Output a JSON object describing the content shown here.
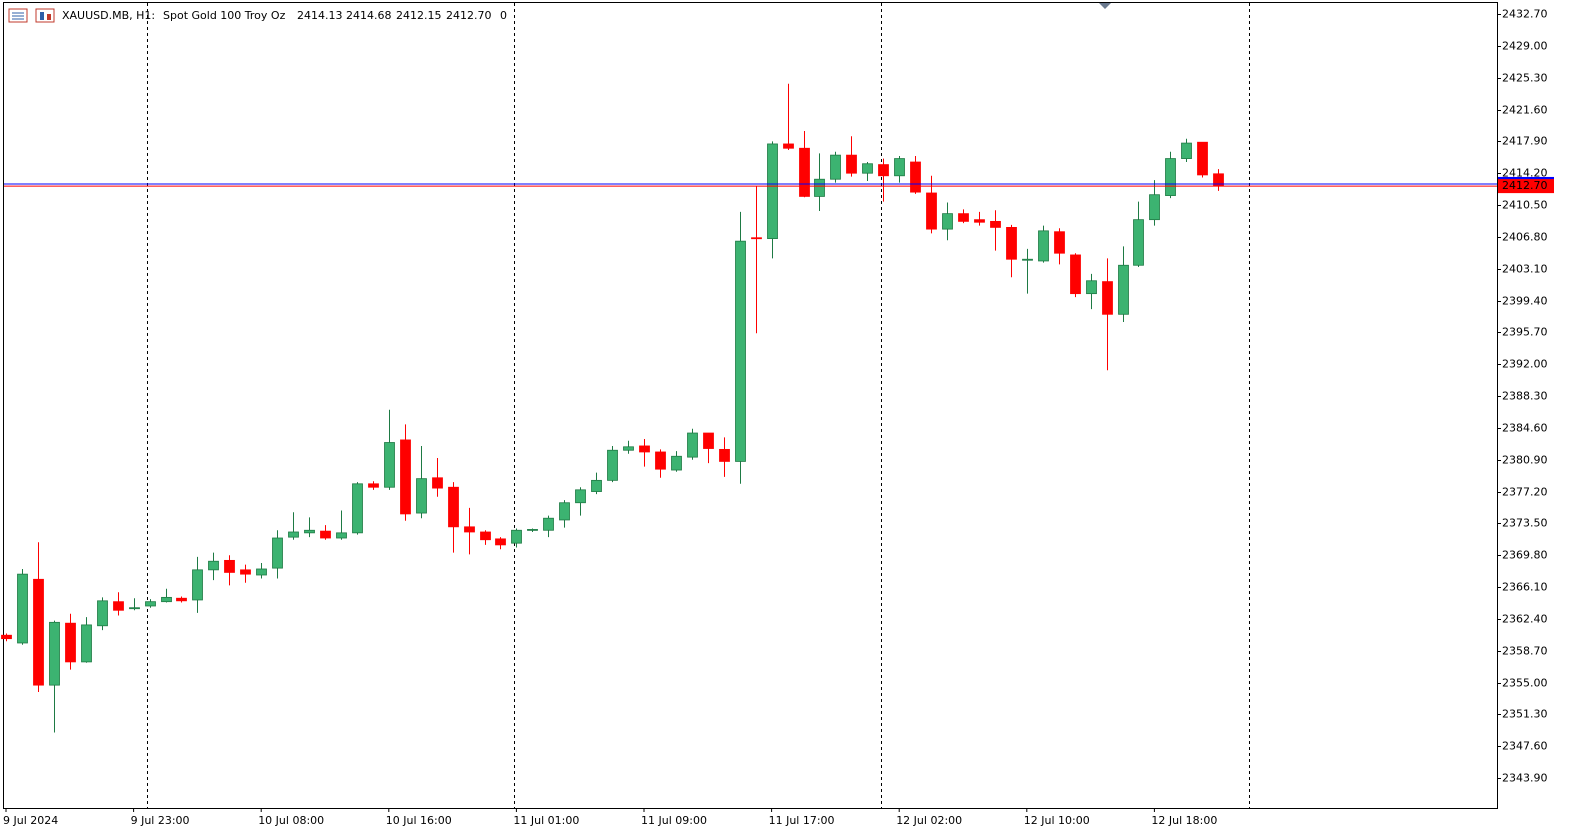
{
  "header": {
    "symbol": "XAUUSD.MB, H1:",
    "description": "Spot Gold 100 Troy Oz",
    "ohlc": [
      "2414.13",
      "2414.68",
      "2412.15",
      "2412.70"
    ],
    "volume": "0"
  },
  "chart_data": {
    "type": "candlestick",
    "categories": [
      "9 Jul 2024",
      null,
      null,
      null,
      null,
      null,
      null,
      null,
      "9 Jul 23:00",
      null,
      null,
      null,
      null,
      null,
      null,
      null,
      "10 Jul 08:00",
      null,
      null,
      null,
      null,
      null,
      null,
      null,
      "10 Jul 16:00",
      null,
      null,
      null,
      null,
      null,
      null,
      null,
      "11 Jul 01:00",
      null,
      null,
      null,
      null,
      null,
      null,
      null,
      "11 Jul 09:00",
      null,
      null,
      null,
      null,
      null,
      null,
      null,
      "11 Jul 17:00",
      null,
      null,
      null,
      null,
      null,
      null,
      null,
      "12 Jul 02:00",
      null,
      null,
      null,
      null,
      null,
      null,
      null,
      "12 Jul 10:00",
      null,
      null,
      null,
      null,
      null,
      null,
      null,
      "12 Jul 18:00",
      null,
      null,
      null,
      null
    ],
    "open": [
      2360.5,
      2359.6,
      2367.0,
      2354.7,
      2361.9,
      2357.4,
      2361.6,
      2364.4,
      2363.6,
      2363.9,
      2364.4,
      2364.8,
      2364.6,
      2368.1,
      2369.2,
      2368.1,
      2367.5,
      2368.3,
      2371.9,
      2372.4,
      2372.6,
      2371.8,
      2372.4,
      2378.1,
      2377.7,
      2383.2,
      2374.7,
      2378.8,
      2377.7,
      2373.1,
      2372.5,
      2371.7,
      2371.2,
      2372.7,
      2372.7,
      2373.9,
      2375.9,
      2377.2,
      2378.5,
      2382.0,
      2382.5,
      2381.8,
      2379.7,
      2381.2,
      2384.0,
      2382.1,
      2380.7,
      2406.7,
      2406.6,
      2417.6,
      2417.1,
      2411.5,
      2413.5,
      2416.3,
      2414.2,
      2415.2,
      2413.9,
      2415.5,
      2411.9,
      2407.7,
      2409.5,
      2408.8,
      2408.6,
      2407.9,
      2404.1,
      2404.0,
      2407.4,
      2404.7,
      2400.2,
      2401.6,
      2397.8,
      2403.5,
      2408.8,
      2411.6,
      2415.9,
      2417.8,
      2414.13
    ],
    "high": [
      2360.7,
      2368.2,
      2371.3,
      2362.2,
      2363.0,
      2362.6,
      2364.9,
      2365.5,
      2364.8,
      2364.7,
      2365.9,
      2365.0,
      2369.6,
      2370.1,
      2369.8,
      2368.7,
      2368.9,
      2372.7,
      2374.8,
      2374.2,
      2373.3,
      2375.0,
      2378.3,
      2378.4,
      2386.7,
      2385.0,
      2382.5,
      2381.1,
      2378.3,
      2375.3,
      2372.7,
      2371.9,
      2372.9,
      2372.9,
      2374.4,
      2376.2,
      2377.7,
      2379.4,
      2382.5,
      2383.1,
      2383.3,
      2382.1,
      2381.9,
      2384.5,
      2384.0,
      2383.5,
      2409.7,
      2412.7,
      2417.9,
      2424.6,
      2419.1,
      2416.5,
      2416.7,
      2418.5,
      2415.5,
      2415.9,
      2416.2,
      2416.2,
      2413.9,
      2410.8,
      2410.0,
      2409.7,
      2409.9,
      2408.2,
      2405.4,
      2408.1,
      2407.8,
      2404.9,
      2402.5,
      2404.3,
      2405.7,
      2410.9,
      2413.4,
      2416.7,
      2418.2,
      2417.8,
      2414.68
    ],
    "low": [
      2359.8,
      2359.4,
      2353.9,
      2349.2,
      2356.5,
      2357.3,
      2361.1,
      2362.8,
      2363.4,
      2363.7,
      2364.3,
      2364.3,
      2363.1,
      2366.9,
      2366.3,
      2366.6,
      2367.1,
      2367.1,
      2371.6,
      2371.9,
      2371.6,
      2371.6,
      2372.2,
      2377.4,
      2377.4,
      2373.8,
      2374.1,
      2376.6,
      2370.1,
      2369.9,
      2371.0,
      2370.5,
      2370.7,
      2372.5,
      2371.9,
      2373.0,
      2374.4,
      2376.9,
      2378.3,
      2381.6,
      2380.1,
      2378.8,
      2379.5,
      2380.9,
      2380.5,
      2378.9,
      2378.1,
      2395.6,
      2404.3,
      2416.9,
      2411.4,
      2409.8,
      2413.1,
      2413.8,
      2413.3,
      2410.9,
      2413.1,
      2411.8,
      2407.2,
      2406.4,
      2408.4,
      2408.1,
      2405.2,
      2402.1,
      2400.2,
      2403.8,
      2403.6,
      2399.8,
      2398.4,
      2391.3,
      2396.9,
      2403.3,
      2408.1,
      2411.3,
      2415.5,
      2413.7,
      2412.15
    ],
    "close": [
      2360.1,
      2367.6,
      2354.7,
      2362.0,
      2357.4,
      2361.7,
      2364.5,
      2363.4,
      2363.7,
      2364.4,
      2364.9,
      2364.5,
      2368.1,
      2369.1,
      2367.8,
      2367.6,
      2368.2,
      2371.8,
      2372.5,
      2372.7,
      2371.8,
      2372.4,
      2378.1,
      2377.7,
      2382.9,
      2374.6,
      2378.7,
      2377.6,
      2373.1,
      2372.5,
      2371.6,
      2371.0,
      2372.7,
      2372.8,
      2374.1,
      2375.9,
      2377.4,
      2378.5,
      2382.0,
      2382.4,
      2381.8,
      2379.8,
      2381.3,
      2384.0,
      2382.2,
      2380.7,
      2406.3,
      2406.6,
      2417.6,
      2417.1,
      2411.5,
      2413.5,
      2416.3,
      2414.2,
      2415.3,
      2413.9,
      2415.9,
      2412.0,
      2407.7,
      2409.5,
      2408.6,
      2408.5,
      2407.9,
      2404.2,
      2404.2,
      2407.5,
      2404.9,
      2400.2,
      2401.7,
      2397.8,
      2403.5,
      2408.8,
      2411.7,
      2415.9,
      2417.7,
      2414.0,
      2412.7
    ],
    "up_color": "#3cb371",
    "down_color": "#ff0000",
    "ylim": [
      2340.42,
      2434.33
    ],
    "yticks": [
      {
        "value": 2343.9,
        "label": "2343.90"
      },
      {
        "value": 2347.6,
        "label": "2347.60"
      },
      {
        "value": 2351.3,
        "label": "2351.30"
      },
      {
        "value": 2355.0,
        "label": "2355.00"
      },
      {
        "value": 2358.7,
        "label": "2358.70"
      },
      {
        "value": 2362.4,
        "label": "2362.40"
      },
      {
        "value": 2366.1,
        "label": "2366.10"
      },
      {
        "value": 2369.8,
        "label": "2369.80"
      },
      {
        "value": 2373.5,
        "label": "2373.50"
      },
      {
        "value": 2377.2,
        "label": "2377.20"
      },
      {
        "value": 2380.9,
        "label": "2380.90"
      },
      {
        "value": 2384.6,
        "label": "2384.60"
      },
      {
        "value": 2388.3,
        "label": "2388.30"
      },
      {
        "value": 2392.0,
        "label": "2392.00"
      },
      {
        "value": 2395.7,
        "label": "2395.70"
      },
      {
        "value": 2399.4,
        "label": "2399.40"
      },
      {
        "value": 2403.1,
        "label": "2403.10"
      },
      {
        "value": 2406.8,
        "label": "2406.80"
      },
      {
        "value": 2410.5,
        "label": "2410.50"
      },
      {
        "value": 2414.2,
        "label": "2414.20"
      },
      {
        "value": 2417.9,
        "label": "2417.90"
      },
      {
        "value": 2421.6,
        "label": "2421.60"
      },
      {
        "value": 2425.3,
        "label": "2425.30"
      },
      {
        "value": 2429.0,
        "label": "2429.00"
      },
      {
        "value": 2432.7,
        "label": "2432.70"
      }
    ],
    "price_lines": [
      {
        "value": 2412.95,
        "color": "#0000ff"
      },
      {
        "value": 2412.7,
        "label": "2412.70",
        "color": "#ff0000"
      }
    ]
  }
}
